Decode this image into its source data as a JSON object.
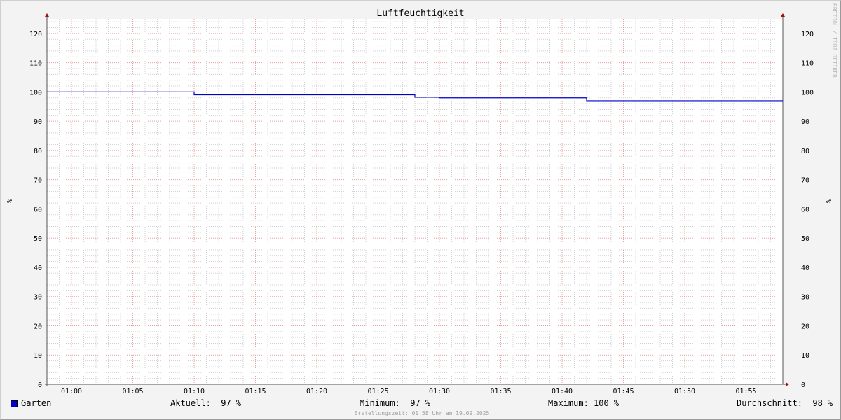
{
  "chart_data": {
    "type": "line",
    "title": "Luftfeuchtigkeit",
    "ylabel": "%",
    "ylabel_right": "%",
    "xlim": [
      "00:58",
      "01:58"
    ],
    "ylim": [
      0,
      125
    ],
    "x_ticks": [
      "01:00",
      "01:05",
      "01:10",
      "01:15",
      "01:20",
      "01:25",
      "01:30",
      "01:35",
      "01:40",
      "01:45",
      "01:50",
      "01:55"
    ],
    "y_ticks": [
      0,
      10,
      20,
      30,
      40,
      50,
      60,
      70,
      80,
      90,
      100,
      110,
      120
    ],
    "grid": true,
    "series": [
      {
        "name": "Garten",
        "color": "#0000cc",
        "step": true,
        "x": [
          "00:58",
          "01:10",
          "01:28",
          "01:30",
          "01:42",
          "01:58"
        ],
        "y": [
          100,
          99,
          98.2,
          98,
          97,
          97
        ]
      }
    ],
    "legend": "bottom"
  },
  "legend": {
    "series_name": "Garten",
    "series_color": "#0000cc",
    "current": "Aktuell:  97 %",
    "minimum": "Minimum:  97 %",
    "maximum": "Maximum: 100 %",
    "average": "Durchschnitt:  98 %"
  },
  "footer": "Erstellungszeit: 01:58 Uhr am 19.09.2025",
  "watermark": "RRDTOOL / TOBI OETIKER"
}
